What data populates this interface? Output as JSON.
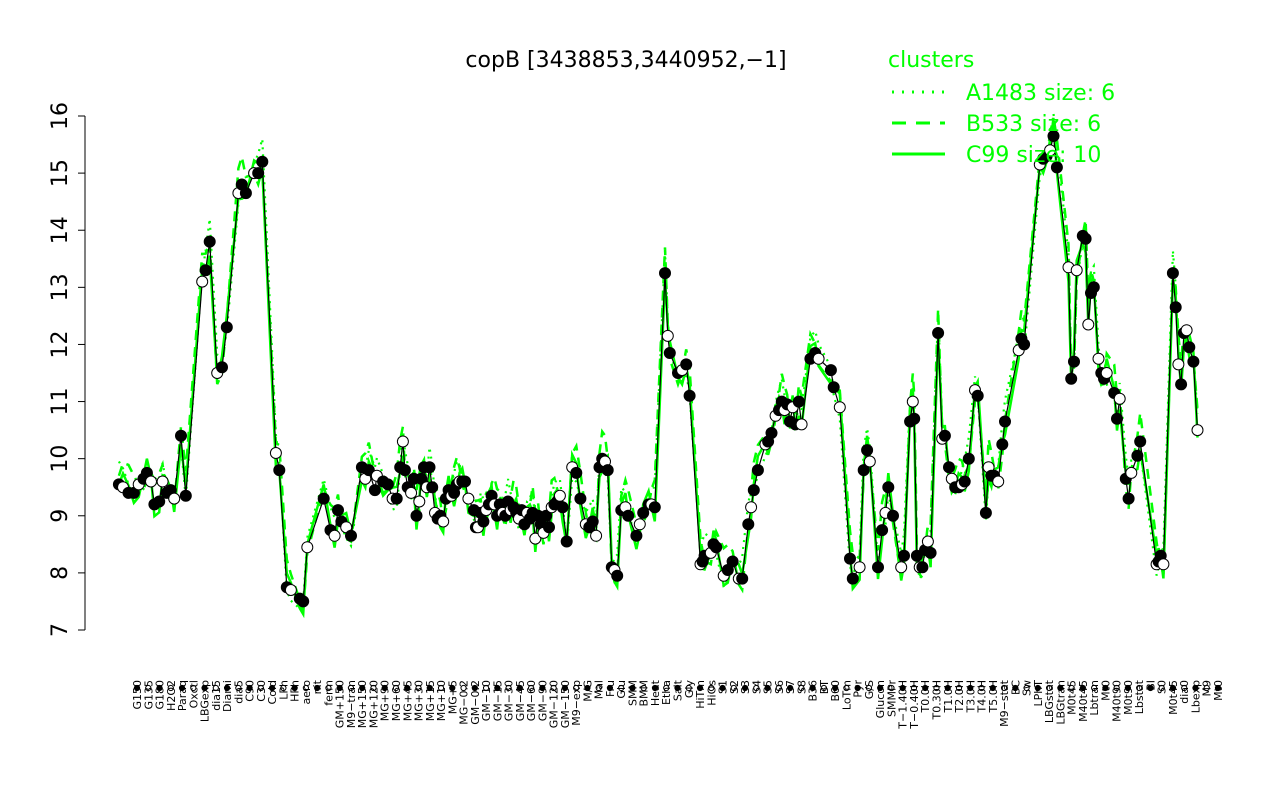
{
  "chart_data": {
    "type": "line",
    "title": "copB [3438853,3440952,−1]",
    "xlabel": "",
    "ylabel": "",
    "ylim": [
      7,
      16
    ],
    "yticks": [
      7,
      8,
      9,
      10,
      11,
      12,
      13,
      14,
      15,
      16
    ],
    "xlabels": [
      "G150",
      "G135",
      "G180",
      "H2O2",
      "Paraq",
      "Oxctl",
      "LBGexp",
      "dia15",
      "Diami",
      "dia5",
      "C90",
      "C30",
      "Cold",
      "LPh",
      "HPh",
      "aero",
      "nit",
      "ferm",
      "GM+150",
      "M9−tran",
      "MG+150",
      "MG+120",
      "MG+90",
      "MG+60",
      "MG+45",
      "MG+30",
      "MG+15",
      "MG+10",
      "MG+5",
      "MG−0.2",
      "GM−0.2",
      "GM−10",
      "GM−15",
      "GM−30",
      "GM−45",
      "GM−60",
      "GM−90",
      "GM−120",
      "GM−150",
      "M9−exp",
      "M/G",
      "Mal",
      "Fru",
      "Glu",
      "SMM",
      "BMM",
      "Heat",
      "Etha",
      "Salt",
      "Gly",
      "HiTm",
      "HiOs",
      "S1",
      "S2",
      "S3",
      "S4",
      "S5",
      "S6",
      "S7",
      "S8",
      "B36",
      "BT",
      "B60",
      "LoTm",
      "Pyr",
      "G/S",
      "Glucon",
      "SMMPr",
      "T−1.40H",
      "T−0.40H",
      "T0.0H",
      "T0.30H",
      "T1.0H",
      "T2.0H",
      "T3.0H",
      "T4.0H",
      "T5.0H",
      "M9−stat",
      "BC",
      "Sw",
      "LPhT",
      "LBGstat",
      "LBGtran",
      "M0t45",
      "M40t45",
      "Lbtran",
      "Mt0",
      "M40t90",
      "M0t90",
      "Lbstat",
      "BI",
      "S0",
      "M0t45",
      "dia0",
      "Lbexp",
      "M9",
      "Mt0"
    ],
    "legend": {
      "title": "clusters",
      "position": "top-right",
      "entries": [
        {
          "label": "A1483 size: 6",
          "style": "dotted"
        },
        {
          "label": "B533 size: 6",
          "style": "dashed"
        },
        {
          "label": "C99 size: 10",
          "style": "solid"
        }
      ]
    },
    "colors": {
      "cluster": "#00ff00",
      "line": "#000000"
    },
    "series": [
      {
        "points": [
          [
            4,
            9.55
          ],
          [
            4.6,
            9.5
          ],
          [
            5.4,
            9.4
          ],
          [
            6.2,
            9.4
          ],
          [
            6.9,
            9.55
          ],
          [
            7.6,
            9.65
          ],
          [
            8.1,
            9.75
          ],
          [
            8.7,
            9.6
          ],
          [
            9.2,
            9.2
          ],
          [
            9.9,
            9.25
          ],
          [
            10.4,
            9.6
          ],
          [
            11.0,
            9.4
          ],
          [
            11.6,
            9.45
          ],
          [
            12.1,
            9.3
          ],
          [
            13.1,
            10.4
          ],
          [
            13.8,
            9.35
          ],
          [
            16.2,
            13.1
          ],
          [
            16.7,
            13.3
          ],
          [
            17.3,
            13.8
          ],
          [
            18.4,
            11.5
          ],
          [
            19.1,
            11.6
          ],
          [
            19.8,
            12.3
          ],
          [
            21.5,
            14.65
          ],
          [
            22.0,
            14.8
          ],
          [
            22.6,
            14.65
          ],
          [
            23.8,
            15.0
          ],
          [
            24.4,
            15.0
          ],
          [
            25.0,
            15.2
          ],
          [
            27.0,
            10.1
          ],
          [
            27.5,
            9.8
          ],
          [
            28.6,
            7.75
          ],
          [
            29.2,
            7.7
          ],
          [
            30.5,
            7.55
          ],
          [
            31.0,
            7.5
          ],
          [
            31.6,
            8.45
          ],
          [
            34.0,
            9.3
          ],
          [
            35.0,
            8.75
          ],
          [
            35.6,
            8.65
          ],
          [
            36.1,
            9.1
          ],
          [
            36.6,
            8.9
          ],
          [
            37.3,
            8.8
          ],
          [
            38.0,
            8.65
          ],
          [
            39.6,
            9.85
          ],
          [
            40.1,
            9.65
          ],
          [
            40.6,
            9.8
          ],
          [
            41.5,
            9.45
          ],
          [
            41.8,
            9.7
          ],
          [
            42.7,
            9.6
          ],
          [
            43.4,
            9.55
          ],
          [
            44.1,
            9.3
          ],
          [
            44.7,
            9.3
          ],
          [
            45.2,
            9.85
          ],
          [
            45.6,
            10.3
          ],
          [
            45.9,
            9.8
          ],
          [
            46.3,
            9.5
          ],
          [
            46.8,
            9.4
          ],
          [
            47.2,
            9.65
          ],
          [
            47.6,
            9.0
          ],
          [
            48.0,
            9.25
          ],
          [
            48.3,
            9.65
          ],
          [
            48.7,
            9.85
          ],
          [
            49.1,
            9.5
          ],
          [
            49.5,
            9.85
          ],
          [
            49.9,
            9.5
          ],
          [
            50.3,
            9.05
          ],
          [
            50.7,
            8.95
          ],
          [
            51.1,
            9.0
          ],
          [
            51.5,
            8.9
          ],
          [
            51.9,
            9.3
          ],
          [
            52.3,
            9.45
          ],
          [
            52.7,
            9.35
          ],
          [
            53.1,
            9.4
          ],
          [
            53.5,
            9.55
          ],
          [
            53.9,
            9.6
          ],
          [
            54.3,
            9.6
          ],
          [
            54.7,
            9.6
          ],
          [
            55.2,
            9.3
          ],
          [
            56.0,
            9.1
          ],
          [
            56.3,
            8.8
          ],
          [
            56.6,
            8.8
          ],
          [
            57.0,
            9.05
          ],
          [
            57.4,
            8.9
          ],
          [
            57.8,
            9.1
          ],
          [
            58.2,
            9.2
          ],
          [
            58.6,
            9.35
          ],
          [
            59.0,
            9.2
          ],
          [
            59.4,
            9.0
          ],
          [
            59.8,
            9.2
          ],
          [
            60.2,
            9.05
          ],
          [
            60.6,
            9.0
          ],
          [
            61.0,
            9.25
          ],
          [
            61.4,
            9.1
          ],
          [
            61.8,
            9.15
          ],
          [
            62.2,
            9.05
          ],
          [
            62.6,
            8.95
          ],
          [
            63.0,
            9.1
          ],
          [
            63.4,
            8.85
          ],
          [
            63.8,
            9.05
          ],
          [
            64.2,
            8.95
          ],
          [
            64.6,
            9.05
          ],
          [
            65.0,
            8.6
          ],
          [
            65.4,
            9.0
          ],
          [
            65.8,
            8.85
          ],
          [
            66.2,
            8.7
          ],
          [
            66.6,
            9.0
          ],
          [
            67.0,
            8.8
          ],
          [
            67.4,
            9.15
          ],
          [
            67.8,
            9.2
          ],
          [
            68.2,
            9.25
          ],
          [
            68.6,
            9.35
          ],
          [
            69.0,
            9.15
          ],
          [
            69.6,
            8.55
          ],
          [
            70.4,
            9.85
          ],
          [
            71.0,
            9.75
          ],
          [
            71.6,
            9.3
          ],
          [
            72.4,
            8.85
          ],
          [
            72.9,
            8.8
          ],
          [
            73.4,
            8.9
          ],
          [
            73.9,
            8.65
          ],
          [
            74.4,
            9.85
          ],
          [
            74.8,
            10.0
          ],
          [
            75.2,
            9.95
          ],
          [
            75.6,
            9.8
          ],
          [
            76.2,
            8.1
          ],
          [
            76.6,
            8.05
          ],
          [
            77.0,
            7.95
          ],
          [
            77.6,
            9.1
          ],
          [
            78.2,
            9.15
          ],
          [
            78.6,
            9.0
          ],
          [
            79.8,
            8.65
          ],
          [
            80.3,
            8.85
          ],
          [
            80.8,
            9.05
          ],
          [
            81.6,
            9.2
          ],
          [
            82.0,
            9.2
          ],
          [
            82.5,
            9.15
          ],
          [
            84.0,
            13.25
          ],
          [
            84.4,
            12.15
          ],
          [
            84.7,
            11.85
          ],
          [
            85.9,
            11.5
          ],
          [
            86.5,
            11.55
          ],
          [
            87.1,
            11.65
          ],
          [
            87.6,
            11.1
          ],
          [
            89.2,
            8.15
          ],
          [
            89.5,
            8.2
          ],
          [
            89.8,
            8.3
          ],
          [
            90.7,
            8.35
          ],
          [
            91.1,
            8.5
          ],
          [
            91.5,
            8.45
          ],
          [
            92.6,
            7.95
          ],
          [
            93.2,
            8.05
          ],
          [
            93.9,
            8.2
          ],
          [
            94.8,
            7.9
          ],
          [
            95.3,
            7.9
          ],
          [
            96.2,
            8.85
          ],
          [
            96.6,
            9.15
          ],
          [
            97.0,
            9.45
          ],
          [
            97.6,
            9.8
          ],
          [
            98.7,
            10.25
          ],
          [
            99.1,
            10.3
          ],
          [
            99.6,
            10.45
          ],
          [
            100.2,
            10.75
          ],
          [
            100.7,
            10.85
          ],
          [
            101.1,
            11.0
          ],
          [
            101.5,
            10.85
          ],
          [
            101.9,
            10.95
          ],
          [
            102.3,
            10.65
          ],
          [
            102.7,
            10.9
          ],
          [
            103.1,
            10.6
          ],
          [
            103.6,
            11.0
          ],
          [
            104.0,
            10.6
          ],
          [
            105.3,
            11.75
          ],
          [
            106.0,
            11.85
          ],
          [
            106.5,
            11.75
          ],
          [
            108.3,
            11.55
          ],
          [
            108.7,
            11.25
          ],
          [
            109.6,
            10.9
          ],
          [
            111.1,
            8.25
          ],
          [
            111.5,
            7.9
          ],
          [
            112.5,
            8.1
          ],
          [
            113.1,
            9.8
          ],
          [
            113.6,
            10.15
          ],
          [
            114.0,
            9.95
          ],
          [
            115.2,
            8.1
          ],
          [
            115.8,
            8.75
          ],
          [
            116.3,
            9.05
          ],
          [
            116.7,
            9.5
          ],
          [
            117.4,
            9.0
          ],
          [
            118.6,
            8.1
          ],
          [
            119.0,
            8.3
          ],
          [
            119.9,
            10.65
          ],
          [
            120.3,
            11.0
          ],
          [
            120.5,
            10.7
          ],
          [
            120.9,
            8.3
          ],
          [
            121.3,
            8.1
          ],
          [
            121.7,
            8.1
          ],
          [
            122.1,
            8.4
          ],
          [
            122.5,
            8.55
          ],
          [
            122.9,
            8.35
          ],
          [
            124.0,
            12.2
          ],
          [
            124.6,
            10.35
          ],
          [
            125.0,
            10.4
          ],
          [
            125.6,
            9.85
          ],
          [
            126.0,
            9.65
          ],
          [
            126.5,
            9.5
          ],
          [
            127.0,
            9.5
          ],
          [
            127.5,
            9.55
          ],
          [
            127.9,
            9.6
          ],
          [
            128.5,
            10.0
          ],
          [
            129.4,
            11.2
          ],
          [
            129.8,
            11.1
          ],
          [
            131.0,
            9.05
          ],
          [
            131.4,
            9.85
          ],
          [
            131.8,
            9.7
          ],
          [
            132.2,
            9.7
          ],
          [
            132.8,
            9.6
          ],
          [
            133.4,
            10.25
          ],
          [
            133.8,
            10.65
          ],
          [
            135.8,
            11.9
          ],
          [
            136.2,
            12.1
          ],
          [
            136.6,
            12.0
          ],
          [
            138.9,
            15.15
          ],
          [
            139.4,
            15.25
          ],
          [
            139.9,
            15.3
          ],
          [
            140.4,
            15.4
          ],
          [
            140.9,
            15.65
          ],
          [
            141.4,
            15.1
          ],
          [
            143.1,
            13.35
          ],
          [
            143.5,
            11.4
          ],
          [
            143.9,
            11.7
          ],
          [
            144.3,
            13.3
          ],
          [
            145.2,
            13.9
          ],
          [
            145.6,
            13.85
          ],
          [
            146.0,
            12.35
          ],
          [
            146.4,
            12.9
          ],
          [
            146.8,
            13.0
          ],
          [
            147.5,
            11.75
          ],
          [
            147.9,
            11.5
          ],
          [
            148.3,
            11.4
          ],
          [
            148.7,
            11.5
          ],
          [
            149.8,
            11.15
          ],
          [
            150.2,
            10.7
          ],
          [
            150.6,
            11.05
          ],
          [
            151.5,
            9.65
          ],
          [
            151.9,
            9.3
          ],
          [
            152.3,
            9.75
          ],
          [
            153.2,
            10.05
          ],
          [
            153.6,
            10.3
          ],
          [
            156.0,
            8.15
          ],
          [
            156.3,
            8.2
          ],
          [
            156.6,
            8.3
          ],
          [
            157.0,
            8.15
          ],
          [
            158.4,
            13.25
          ],
          [
            158.8,
            12.65
          ],
          [
            159.2,
            11.65
          ],
          [
            159.6,
            11.3
          ],
          [
            160.0,
            12.2
          ],
          [
            160.4,
            12.25
          ],
          [
            160.8,
            11.95
          ],
          [
            161.4,
            11.7
          ],
          [
            162.0,
            10.5
          ]
        ]
      }
    ]
  }
}
